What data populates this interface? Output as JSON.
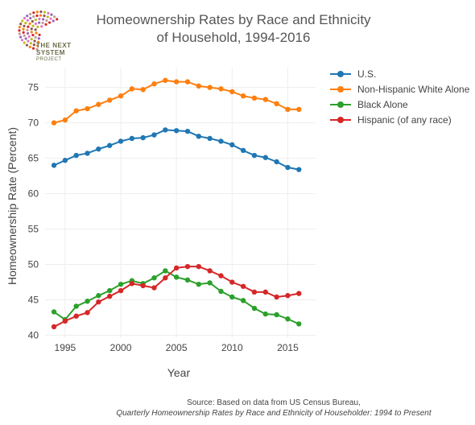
{
  "chart_data": {
    "type": "line",
    "title_line1": "Homeownership Rates by Race and Ethnicity",
    "title_line2": "of Household, 1994-2016",
    "xlabel": "Year",
    "ylabel": "Homeownership Rate (Percent)",
    "xlim": [
      1993.2,
      2017.5
    ],
    "ylim": [
      39.6,
      77.8
    ],
    "x_ticks": [
      1995,
      2000,
      2005,
      2010,
      2015
    ],
    "y_ticks": [
      40,
      45,
      50,
      55,
      60,
      65,
      70,
      75
    ],
    "grid": true,
    "legend_position": "right",
    "x": [
      1994,
      1995,
      1996,
      1997,
      1998,
      1999,
      2000,
      2001,
      2002,
      2003,
      2004,
      2005,
      2006,
      2007,
      2008,
      2009,
      2010,
      2011,
      2012,
      2013,
      2014,
      2015,
      2016
    ],
    "series": [
      {
        "name": "U.S.",
        "color": "#1f77b4",
        "values": [
          64.0,
          64.7,
          65.4,
          65.7,
          66.3,
          66.8,
          67.4,
          67.8,
          67.9,
          68.3,
          69.0,
          68.9,
          68.8,
          68.1,
          67.8,
          67.4,
          66.9,
          66.1,
          65.4,
          65.1,
          64.5,
          63.7,
          63.4
        ]
      },
      {
        "name": "Non-Hispanic White Alone",
        "color": "#ff7f0e",
        "values": [
          70.0,
          70.4,
          71.7,
          72.0,
          72.6,
          73.2,
          73.8,
          74.8,
          74.7,
          75.5,
          76.0,
          75.8,
          75.8,
          75.2,
          75.0,
          74.8,
          74.4,
          73.8,
          73.5,
          73.3,
          72.7,
          71.9,
          71.9
        ]
      },
      {
        "name": "Black Alone",
        "color": "#2ca02c",
        "values": [
          43.3,
          42.2,
          44.1,
          44.8,
          45.6,
          46.3,
          47.2,
          47.7,
          47.3,
          48.1,
          49.1,
          48.2,
          47.8,
          47.2,
          47.4,
          46.2,
          45.4,
          44.9,
          43.8,
          43.0,
          42.9,
          42.3,
          41.6
        ]
      },
      {
        "name": "Hispanic (of any race)",
        "color": "#d62728",
        "values": [
          41.2,
          42.0,
          42.7,
          43.2,
          44.7,
          45.5,
          46.3,
          47.3,
          47.0,
          46.7,
          48.1,
          49.5,
          49.7,
          49.7,
          49.1,
          48.4,
          47.5,
          46.9,
          46.1,
          46.1,
          45.4,
          45.6,
          45.9
        ]
      }
    ]
  },
  "logo": {
    "line1": "THE NEXT",
    "line2": "SYSTEM",
    "line3": "PROJECT"
  },
  "source": {
    "line1": "Source: Based on data from US Census Bureau,",
    "line2": "Quarterly Homeownership Rates by Race and Ethnicity of Householder: 1994 to Present"
  }
}
